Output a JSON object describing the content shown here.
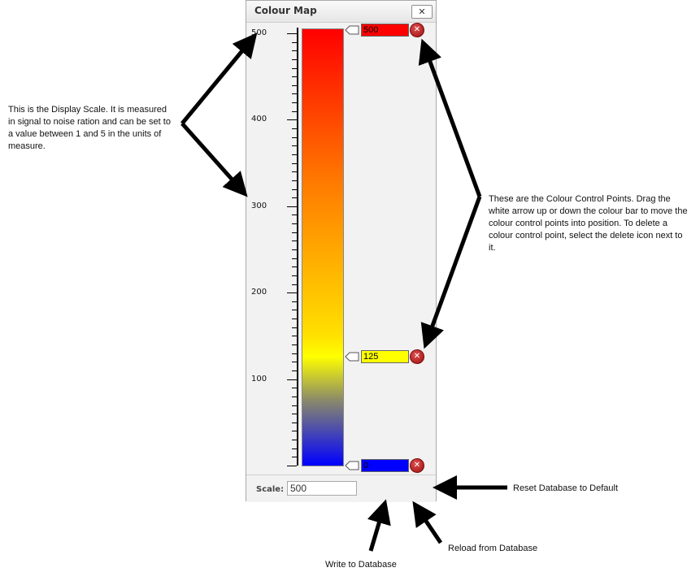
{
  "dialog": {
    "title": "Colour Map",
    "close_label": "✕",
    "footer": {
      "scale_label": "Scale:",
      "scale_value": "500"
    }
  },
  "scale": {
    "ticks": [
      {
        "value": 500,
        "label": "500"
      },
      {
        "value": 400,
        "label": "400"
      },
      {
        "value": 300,
        "label": "300"
      },
      {
        "value": 200,
        "label": "200"
      },
      {
        "value": 100,
        "label": "100"
      }
    ],
    "min": 0,
    "max": 500
  },
  "control_points": [
    {
      "value": "500",
      "color": "#ff0000"
    },
    {
      "value": "125",
      "color": "#ffff00"
    },
    {
      "value": "0",
      "color": "#0000ff"
    }
  ],
  "annotations": {
    "display_scale": "This is the Display Scale. It is measured in signal to noise ration and can be set to a value between 1 and 5 in the units of measure.",
    "control_points": "These are the Colour Control Points. Drag the white arrow up or down the colour bar to move the colour control points into position. To delete a colour control point, select the delete icon next to it.",
    "reset": "Reset Database to Default",
    "reload": "Reload from Database",
    "write": "Write to Database"
  }
}
